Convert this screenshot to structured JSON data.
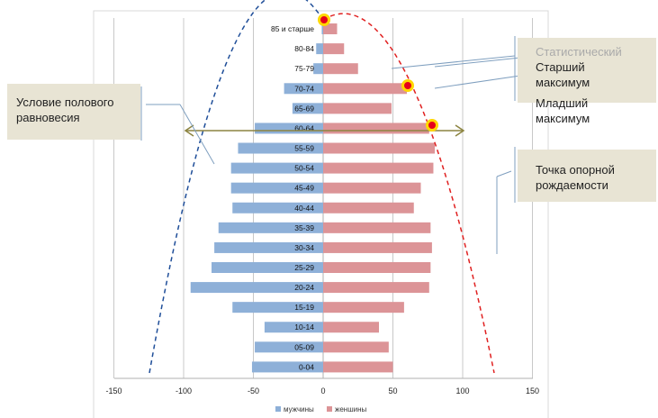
{
  "chart_data": {
    "type": "bar",
    "orientation": "horizontal",
    "categories": [
      "0-04",
      "05-09",
      "10-14",
      "15-19",
      "20-24",
      "25-29",
      "30-34",
      "35-39",
      "40-44",
      "45-49",
      "50-54",
      "55-59",
      "60-64",
      "65-69",
      "70-74",
      "75-79",
      "80-84",
      "85 и старше"
    ],
    "series": [
      {
        "name": "мужчины",
        "color": "#8eb0d8",
        "values": [
          -51,
          -49,
          -42,
          -65,
          -95,
          -80,
          -78,
          -75,
          -65,
          -66,
          -66,
          -61,
          -49,
          -22,
          -28,
          -7,
          -5,
          -1
        ]
      },
      {
        "name": "женшины",
        "color": "#dc9497",
        "values": [
          50,
          47,
          40,
          58,
          76,
          77,
          78,
          77,
          65,
          70,
          79,
          80,
          76,
          49,
          60,
          25,
          15,
          10
        ]
      }
    ],
    "xlim": [
      -150,
      150
    ],
    "xticks": [
      "-150",
      "-100",
      "-50",
      "0",
      "50",
      "100",
      "150"
    ],
    "grid": true,
    "legend": "bottom"
  },
  "annotations": {
    "gender_balance": "Условие полового\nравновесия",
    "statistical": "Статистический",
    "older_max": "Старший максимум",
    "younger_max": "Младший максимум",
    "birth_point": "Точка опорной\nрождаемости"
  }
}
